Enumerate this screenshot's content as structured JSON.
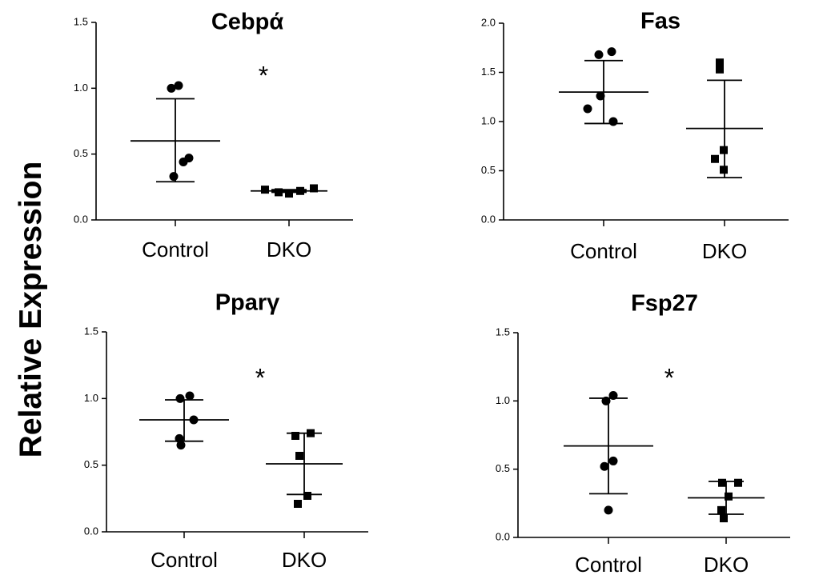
{
  "figure": {
    "ylabel": "Relative Expression",
    "colors": {
      "ink": "#000000",
      "background": "#ffffff"
    }
  },
  "chart_data": [
    {
      "type": "scatter",
      "title": "Cebpά",
      "categories": [
        "Control",
        "DKO"
      ],
      "ylim": [
        0,
        1.5
      ],
      "yticks": [
        "0.0",
        "0.5",
        "1.0",
        "1.5"
      ],
      "significance": "*",
      "series": [
        {
          "group": "Control",
          "marker": "circle",
          "values": [
            1.02,
            1.0,
            0.47,
            0.44,
            0.33
          ],
          "mean": 0.6,
          "error_upper": 0.92,
          "error_lower": 0.29
        },
        {
          "group": "DKO",
          "marker": "square",
          "values": [
            0.23,
            0.21,
            0.2,
            0.22,
            0.24
          ],
          "mean": 0.22,
          "error_upper": 0.23,
          "error_lower": 0.21
        }
      ]
    },
    {
      "type": "scatter",
      "title": "Fas",
      "categories": [
        "Control",
        "DKO"
      ],
      "ylim": [
        0,
        2.0
      ],
      "yticks": [
        "0.0",
        "0.5",
        "1.0",
        "1.5",
        "2.0"
      ],
      "significance": "",
      "series": [
        {
          "group": "Control",
          "marker": "circle",
          "values": [
            1.71,
            1.68,
            1.26,
            1.13,
            1.0
          ],
          "mean": 1.3,
          "error_upper": 1.62,
          "error_lower": 0.98
        },
        {
          "group": "DKO",
          "marker": "square",
          "values": [
            1.6,
            1.53,
            0.71,
            0.62,
            0.51
          ],
          "mean": 0.93,
          "error_upper": 1.42,
          "error_lower": 0.43
        }
      ]
    },
    {
      "type": "scatter",
      "title": "Pparγ",
      "categories": [
        "Control",
        "DKO"
      ],
      "ylim": [
        0,
        1.5
      ],
      "yticks": [
        "0.0",
        "0.5",
        "1.0",
        "1.5"
      ],
      "significance": "*",
      "series": [
        {
          "group": "Control",
          "marker": "circle",
          "values": [
            1.02,
            1.0,
            0.84,
            0.7,
            0.65
          ],
          "mean": 0.84,
          "error_upper": 0.99,
          "error_lower": 0.68
        },
        {
          "group": "DKO",
          "marker": "square",
          "values": [
            0.74,
            0.72,
            0.57,
            0.27,
            0.21
          ],
          "mean": 0.51,
          "error_upper": 0.74,
          "error_lower": 0.28
        }
      ]
    },
    {
      "type": "scatter",
      "title": "Fsp27",
      "categories": [
        "Control",
        "DKO"
      ],
      "ylim": [
        0,
        1.5
      ],
      "yticks": [
        "0.0",
        "0.5",
        "1.0",
        "1.5"
      ],
      "significance": "*",
      "series": [
        {
          "group": "Control",
          "marker": "circle",
          "values": [
            1.04,
            1.0,
            0.56,
            0.52,
            0.2
          ],
          "mean": 0.67,
          "error_upper": 1.02,
          "error_lower": 0.32
        },
        {
          "group": "DKO",
          "marker": "square",
          "values": [
            0.4,
            0.4,
            0.3,
            0.2,
            0.14
          ],
          "mean": 0.29,
          "error_upper": 0.41,
          "error_lower": 0.17
        }
      ]
    }
  ]
}
